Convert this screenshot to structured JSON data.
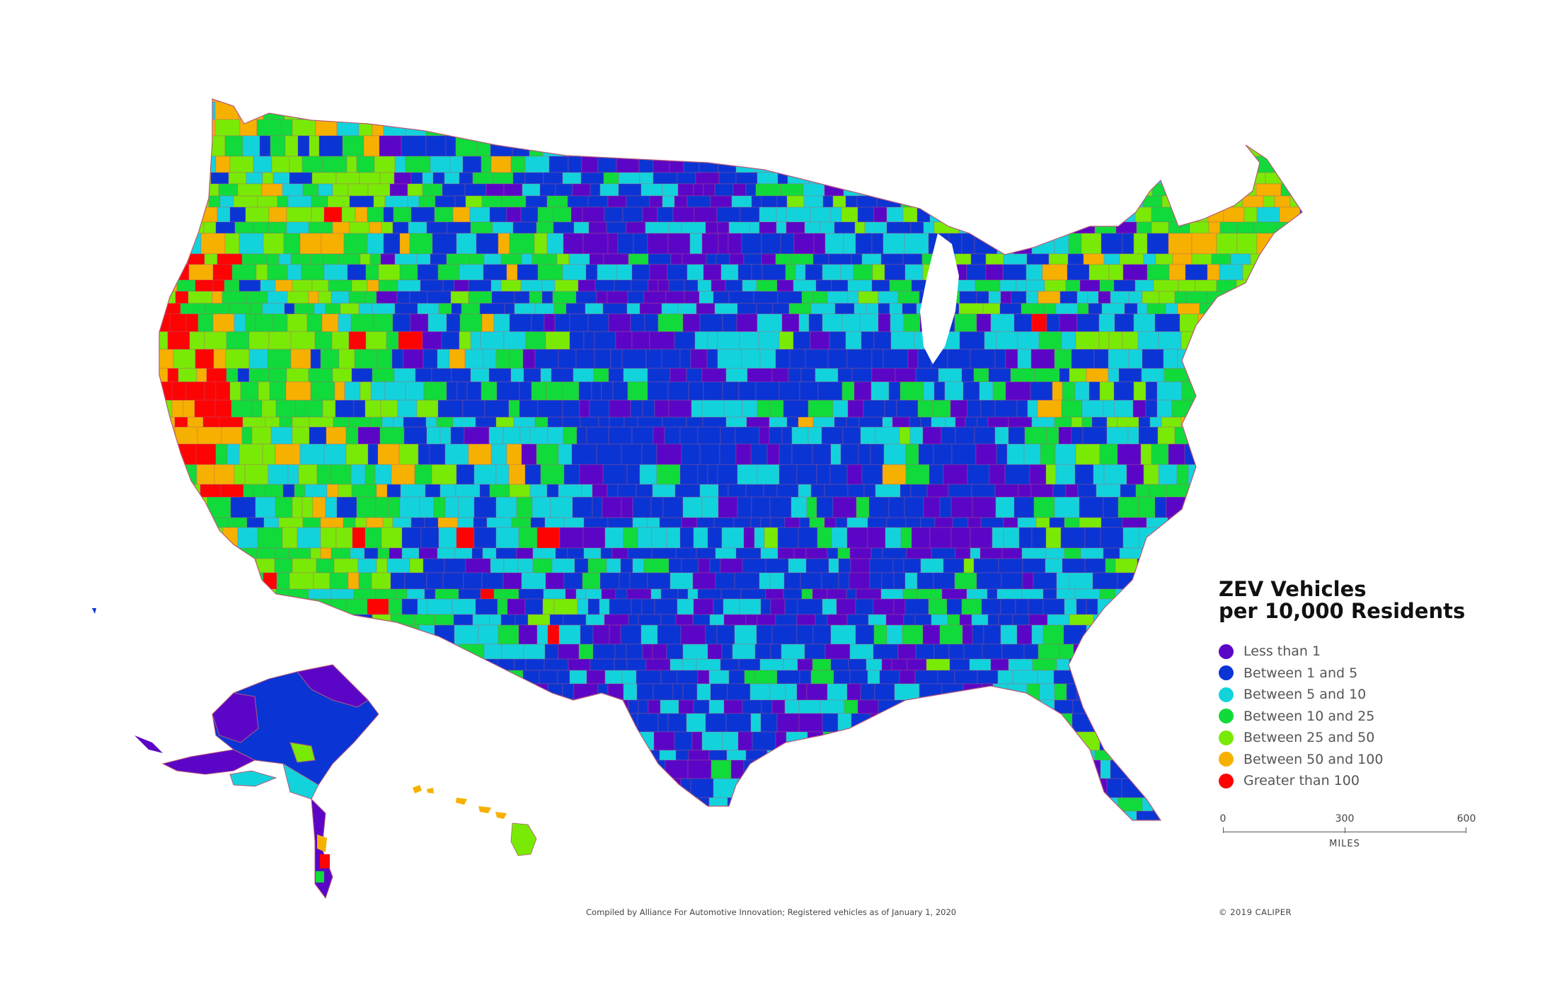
{
  "legend": {
    "title_line1": "ZEV Vehicles",
    "title_line2": "per 10,000 Residents",
    "classes": [
      {
        "label": "Less than 1",
        "color": "#5b06c6"
      },
      {
        "label": "Between 1 and 5",
        "color": "#0a35d4"
      },
      {
        "label": "Between 5 and 10",
        "color": "#12d3dc"
      },
      {
        "label": "Between 10 and 25",
        "color": "#10db3a"
      },
      {
        "label": "Between 25 and 50",
        "color": "#79ea06"
      },
      {
        "label": "Between 50 and 100",
        "color": "#f6b100"
      },
      {
        "label": "Greater than 100",
        "color": "#fc0404"
      }
    ]
  },
  "scale_bar": {
    "ticks": [
      "0",
      "300",
      "600"
    ],
    "unit": "MILES"
  },
  "source_note": "Compiled by Alliance For Automotive Innovation; Registered vehicles as of January 1, 2020",
  "copyright": "© 2019 CALIPER",
  "colors": {
    "border": "#b85a78",
    "background": "#ffffff"
  }
}
